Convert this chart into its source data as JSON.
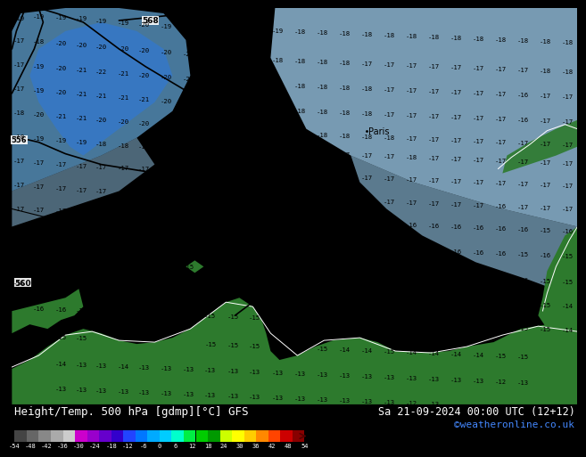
{
  "title_left": "Height/Temp. 500 hPa [gdmp][°C] GFS",
  "title_right": "Sa 21-09-2024 00:00 UTC (12+12)",
  "credit": "©weatheronline.co.uk",
  "bg_color": "#00ccff",
  "land_color": "#2d7a2d",
  "deep_blue": "#5599ff",
  "med_blue": "#88ccff",
  "fig_bg": "#000000",
  "contour_color": "#000000",
  "coast_color": "#ffffff",
  "cb_colors": [
    "#444444",
    "#666666",
    "#888888",
    "#aaaaaa",
    "#cccccc",
    "#cc00cc",
    "#9900cc",
    "#6600cc",
    "#3300cc",
    "#2244ff",
    "#0077ff",
    "#00aaff",
    "#00ccff",
    "#00ffcc",
    "#00ee44",
    "#00cc00",
    "#009900",
    "#ccff00",
    "#ffff00",
    "#ffcc00",
    "#ff8800",
    "#ff4400",
    "#cc0000",
    "#880000"
  ],
  "cb_tick_vals": [
    -54,
    -48,
    -42,
    -36,
    -30,
    -24,
    -18,
    -12,
    -6,
    0,
    6,
    12,
    18,
    24,
    30,
    36,
    42,
    48,
    54
  ]
}
